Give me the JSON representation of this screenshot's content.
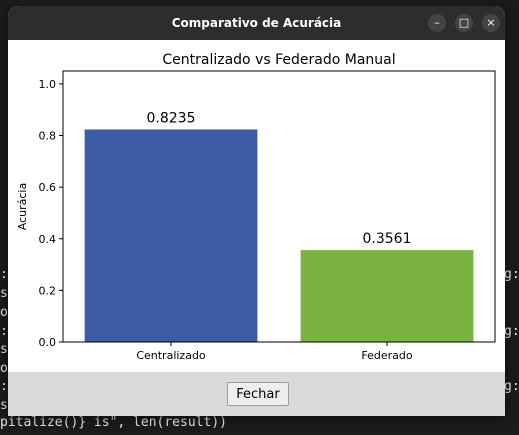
{
  "terminal": {
    "lines": [
      {
        "left": ":l",
        "right": "g:"
      },
      {
        "left": "s",
        "right": ""
      },
      {
        "left": "op",
        "right": ""
      },
      {
        "left": ":l",
        "right": "g:"
      },
      {
        "left": "s",
        "right": ""
      },
      {
        "left": "op",
        "right": ""
      },
      {
        "left": ":l",
        "right": "g:"
      },
      {
        "left": "s",
        "right": ""
      },
      {
        "left": "pitalize()} is\", len(result))",
        "right": ""
      }
    ]
  },
  "window": {
    "title": "Comparativo de Acurácia",
    "controls": {
      "minimize": "–",
      "maximize": "□",
      "close": "×"
    },
    "close_button_label": "Fechar"
  },
  "colors": {
    "bar_central": "#3c5da5",
    "bar_federado": "#7ab342"
  },
  "chart_data": {
    "type": "bar",
    "title": "Centralizado vs Federado Manual",
    "ylabel": "Acurácia",
    "xlabel": "",
    "categories": [
      "Centralizado",
      "Federado"
    ],
    "values": [
      0.8235,
      0.3561
    ],
    "value_labels": [
      "0.8235",
      "0.3561"
    ],
    "ylim": [
      0,
      1.05
    ],
    "yticks": [
      "0.0",
      "0.2",
      "0.4",
      "0.6",
      "0.8",
      "1.0"
    ],
    "grid": false
  }
}
